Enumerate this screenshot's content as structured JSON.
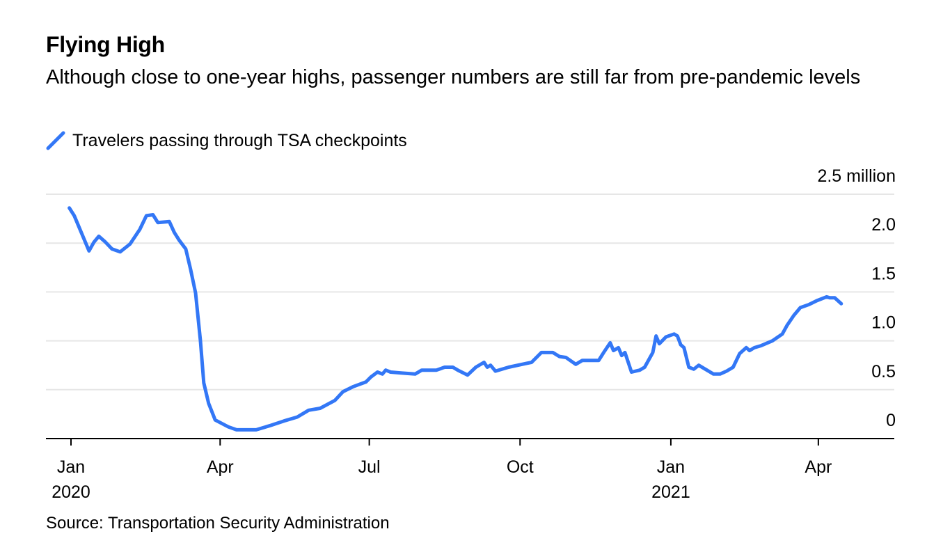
{
  "header": {
    "title": "Flying High",
    "subtitle": "Although close to one-year highs, passenger numbers are still far from pre-pandemic levels"
  },
  "legend": {
    "items": [
      {
        "label": "Travelers passing through TSA checkpoints",
        "color": "#3377F6",
        "icon": "diagonal-line-icon"
      }
    ]
  },
  "footer": {
    "source": "Source: Transportation Security Administration"
  },
  "chart_data": {
    "type": "line",
    "title": "Flying High",
    "subtitle": "Although close to one-year highs, passenger numbers are still far from pre-pandemic levels",
    "xlabel": "",
    "ylabel": "",
    "yunit_label": "2.5 million",
    "ylim": [
      0,
      2.5
    ],
    "xlim": [
      "2019-12-30",
      "2021-05-21"
    ],
    "grid": true,
    "legend_position": "top-left",
    "y_ticks": [
      {
        "value": 0,
        "label": "0"
      },
      {
        "value": 0.5,
        "label": "0.5"
      },
      {
        "value": 1.0,
        "label": "1.0"
      },
      {
        "value": 1.5,
        "label": "1.5"
      },
      {
        "value": 2.0,
        "label": "2.0"
      },
      {
        "value": 2.5,
        "label": "2.5 million"
      }
    ],
    "x_ticks": [
      {
        "date": "2020-01-01",
        "label": "Jan",
        "sublabel": "2020"
      },
      {
        "date": "2020-04-01",
        "label": "Apr",
        "sublabel": ""
      },
      {
        "date": "2020-07-01",
        "label": "Jul",
        "sublabel": ""
      },
      {
        "date": "2020-10-01",
        "label": "Oct",
        "sublabel": ""
      },
      {
        "date": "2021-01-01",
        "label": "Jan",
        "sublabel": "2021"
      },
      {
        "date": "2021-04-01",
        "label": "Apr",
        "sublabel": ""
      }
    ],
    "series": [
      {
        "name": "Travelers passing through TSA checkpoints",
        "color": "#3377F6",
        "unit": "million",
        "points": [
          [
            "2019-12-31",
            2.36
          ],
          [
            "2020-01-03",
            2.28
          ],
          [
            "2020-01-12",
            1.92
          ],
          [
            "2020-01-15",
            2.01
          ],
          [
            "2020-01-18",
            2.07
          ],
          [
            "2020-01-22",
            2.01
          ],
          [
            "2020-01-26",
            1.94
          ],
          [
            "2020-01-31",
            1.91
          ],
          [
            "2020-02-06",
            1.99
          ],
          [
            "2020-02-12",
            2.14
          ],
          [
            "2020-02-16",
            2.28
          ],
          [
            "2020-02-20",
            2.29
          ],
          [
            "2020-02-23",
            2.21
          ],
          [
            "2020-03-01",
            2.22
          ],
          [
            "2020-03-04",
            2.11
          ],
          [
            "2020-03-07",
            2.03
          ],
          [
            "2020-03-11",
            1.94
          ],
          [
            "2020-03-14",
            1.73
          ],
          [
            "2020-03-17",
            1.49
          ],
          [
            "2020-03-20",
            1.0
          ],
          [
            "2020-03-22",
            0.57
          ],
          [
            "2020-03-25",
            0.36
          ],
          [
            "2020-03-29",
            0.19
          ],
          [
            "2020-04-06",
            0.12
          ],
          [
            "2020-04-11",
            0.09
          ],
          [
            "2020-04-23",
            0.09
          ],
          [
            "2020-05-01",
            0.13
          ],
          [
            "2020-05-10",
            0.18
          ],
          [
            "2020-05-18",
            0.22
          ],
          [
            "2020-05-25",
            0.29
          ],
          [
            "2020-06-01",
            0.31
          ],
          [
            "2020-06-10",
            0.39
          ],
          [
            "2020-06-15",
            0.48
          ],
          [
            "2020-06-21",
            0.53
          ],
          [
            "2020-06-29",
            0.58
          ],
          [
            "2020-07-02",
            0.63
          ],
          [
            "2020-07-06",
            0.68
          ],
          [
            "2020-07-09",
            0.66
          ],
          [
            "2020-07-11",
            0.7
          ],
          [
            "2020-07-14",
            0.68
          ],
          [
            "2020-07-21",
            0.67
          ],
          [
            "2020-07-29",
            0.66
          ],
          [
            "2020-08-02",
            0.7
          ],
          [
            "2020-08-11",
            0.7
          ],
          [
            "2020-08-16",
            0.73
          ],
          [
            "2020-08-21",
            0.73
          ],
          [
            "2020-08-24",
            0.7
          ],
          [
            "2020-08-30",
            0.65
          ],
          [
            "2020-09-04",
            0.73
          ],
          [
            "2020-09-09",
            0.78
          ],
          [
            "2020-09-11",
            0.73
          ],
          [
            "2020-09-13",
            0.75
          ],
          [
            "2020-09-16",
            0.69
          ],
          [
            "2020-09-24",
            0.73
          ],
          [
            "2020-10-05",
            0.77
          ],
          [
            "2020-10-08",
            0.78
          ],
          [
            "2020-10-14",
            0.88
          ],
          [
            "2020-10-21",
            0.88
          ],
          [
            "2020-10-25",
            0.84
          ],
          [
            "2020-10-29",
            0.83
          ],
          [
            "2020-11-04",
            0.76
          ],
          [
            "2020-11-08",
            0.8
          ],
          [
            "2020-11-18",
            0.8
          ],
          [
            "2020-11-21",
            0.88
          ],
          [
            "2020-11-25",
            0.98
          ],
          [
            "2020-11-27",
            0.9
          ],
          [
            "2020-11-30",
            0.93
          ],
          [
            "2020-12-02",
            0.85
          ],
          [
            "2020-12-04",
            0.88
          ],
          [
            "2020-12-08",
            0.68
          ],
          [
            "2020-12-13",
            0.7
          ],
          [
            "2020-12-16",
            0.73
          ],
          [
            "2020-12-21",
            0.88
          ],
          [
            "2020-12-23",
            1.05
          ],
          [
            "2020-12-25",
            0.97
          ],
          [
            "2020-12-29",
            1.04
          ],
          [
            "2021-01-03",
            1.07
          ],
          [
            "2021-01-05",
            1.05
          ],
          [
            "2021-01-07",
            0.96
          ],
          [
            "2021-01-09",
            0.93
          ],
          [
            "2021-01-12",
            0.73
          ],
          [
            "2021-01-15",
            0.71
          ],
          [
            "2021-01-18",
            0.75
          ],
          [
            "2021-01-25",
            0.68
          ],
          [
            "2021-01-27",
            0.66
          ],
          [
            "2021-01-31",
            0.66
          ],
          [
            "2021-02-04",
            0.69
          ],
          [
            "2021-02-08",
            0.73
          ],
          [
            "2021-02-12",
            0.87
          ],
          [
            "2021-02-16",
            0.93
          ],
          [
            "2021-02-18",
            0.9
          ],
          [
            "2021-02-21",
            0.93
          ],
          [
            "2021-02-25",
            0.95
          ],
          [
            "2021-03-04",
            1.0
          ],
          [
            "2021-03-10",
            1.07
          ],
          [
            "2021-03-13",
            1.16
          ],
          [
            "2021-03-17",
            1.26
          ],
          [
            "2021-03-21",
            1.34
          ],
          [
            "2021-03-26",
            1.37
          ],
          [
            "2021-03-31",
            1.41
          ],
          [
            "2021-04-06",
            1.45
          ],
          [
            "2021-04-08",
            1.44
          ],
          [
            "2021-04-11",
            1.44
          ],
          [
            "2021-04-15",
            1.38
          ]
        ]
      }
    ]
  }
}
